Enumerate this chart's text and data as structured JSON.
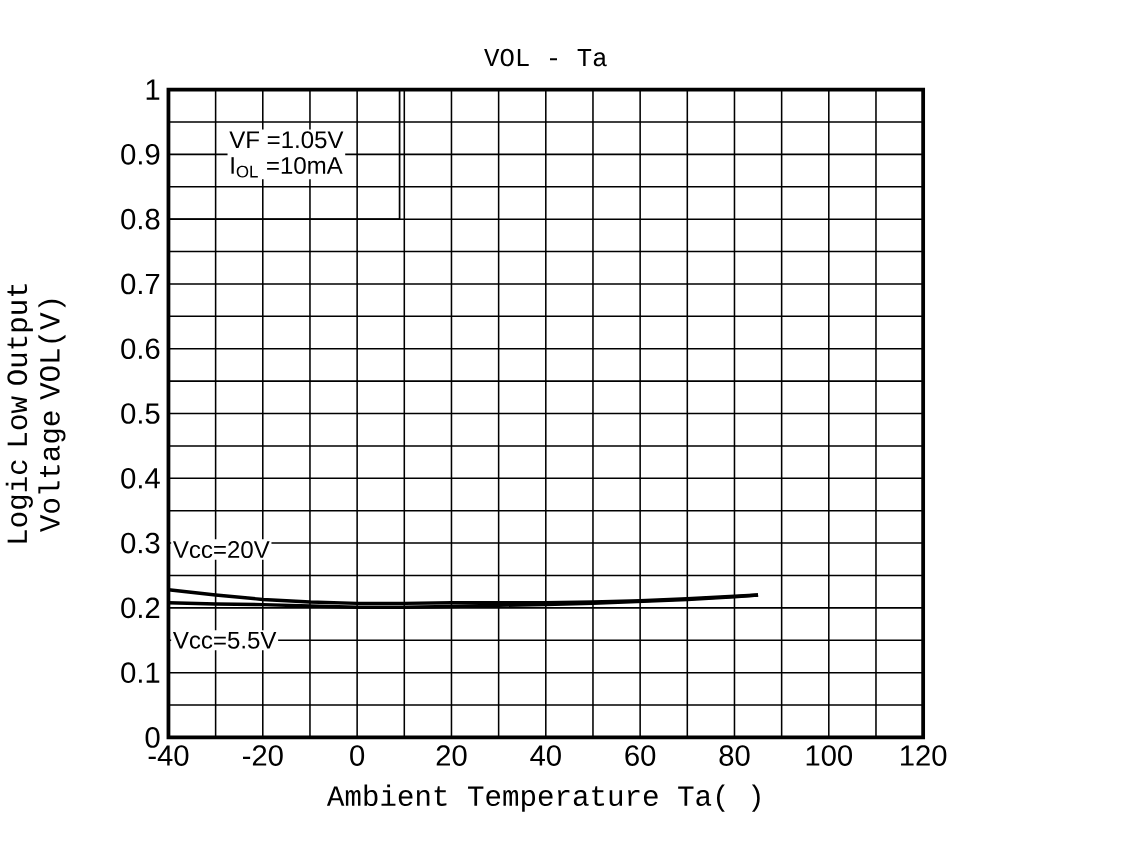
{
  "chart_data": {
    "type": "line",
    "title": "VOL - Ta",
    "xlabel": "Ambient Temperature Ta(   )",
    "ylabel": "Logic Low Output Voltage VOL(V)",
    "annotations": [
      "VF =1.05V",
      "I$_{OL}$ =10mA"
    ],
    "x": [
      -40,
      -30,
      -20,
      -10,
      0,
      10,
      20,
      30,
      40,
      50,
      60,
      70,
      80,
      85
    ],
    "series": [
      {
        "name": "Vcc=20V",
        "color": "#000000",
        "values": [
          0.228,
          0.22,
          0.213,
          0.209,
          0.207,
          0.207,
          0.208,
          0.208,
          0.208,
          0.209,
          0.211,
          0.214,
          0.218,
          0.22
        ]
      },
      {
        "name": "Vcc=5.5V",
        "color": "#000000",
        "values": [
          0.208,
          0.206,
          0.205,
          0.203,
          0.201,
          0.201,
          0.202,
          0.204,
          0.205,
          0.207,
          0.21,
          0.213,
          0.217,
          0.22
        ]
      }
    ],
    "xlim": [
      -40,
      120
    ],
    "ylim": [
      0,
      1
    ],
    "xticks": [
      -40,
      -20,
      0,
      20,
      40,
      60,
      80,
      100,
      120
    ],
    "yticks": [
      0,
      0.1,
      0.2,
      0.3,
      0.4,
      0.5,
      0.6,
      0.7,
      0.8,
      0.9,
      1
    ],
    "grid": true,
    "marker": "none",
    "line_style": "solid"
  }
}
